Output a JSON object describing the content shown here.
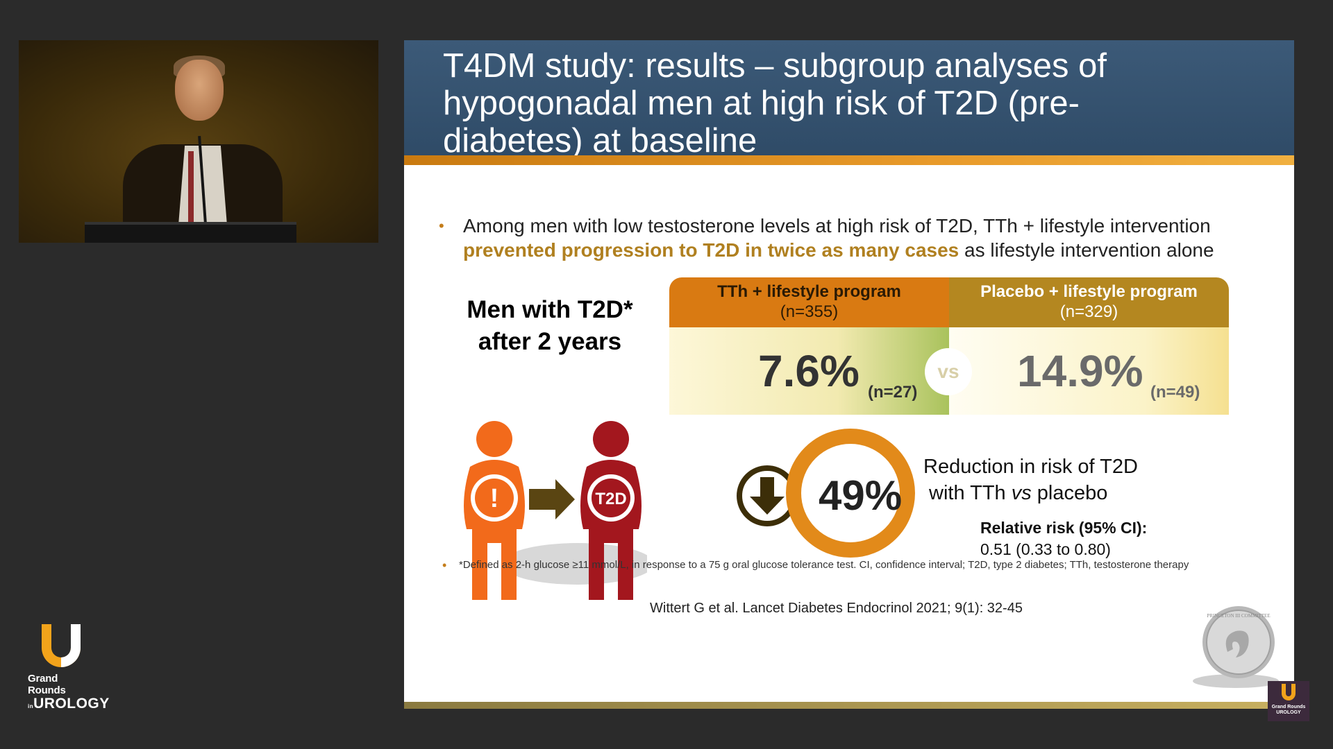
{
  "brand": {
    "name_line1": "Grand Rounds",
    "name_prefix": "in",
    "name_line2": "UROLOGY",
    "mini_line1": "Grand Rounds",
    "mini_line2": "UROLOGY"
  },
  "slide": {
    "title": "T4DM study: results – subgroup analyses of hypogonadal men at high risk of T2D (pre-diabetes) at baseline",
    "bullet": {
      "before": "Among men with low testosterone levels at high risk of T2D, TTh + lifestyle intervention ",
      "highlight": "prevented progression to T2D in twice as many cases",
      "after": " as lifestyle intervention alone"
    },
    "men_title_line1": "Men with T2D*",
    "men_title_line2": "after 2 years",
    "figures": {
      "left_symbol": "!",
      "right_label": "T2D"
    },
    "comparison": {
      "left": {
        "header": "TTh + lifestyle program",
        "n": "(n=355)",
        "value": "7.6%",
        "count": "(n=27)"
      },
      "vs": "vs",
      "right": {
        "header": "Placebo + lifestyle program",
        "n": "(n=329)",
        "value": "14.9%",
        "count": "(n=49)"
      }
    },
    "reduction": {
      "value": "49%",
      "line1": "Reduction in risk of T2D",
      "line2_a": "with TTh ",
      "line2_em": "vs",
      "line2_b": " placebo",
      "rr_label": "Relative risk (95% CI):",
      "rr_value": "0.51 (0.33 to 0.80)"
    },
    "footnote": "*Defined as 2-h glucose ≥11 mmol/L, in response to a 75 g oral glucose tolerance test. CI, confidence interval; T2D, type 2 diabetes; TTh, testosterone therapy",
    "citation": "Wittert G et al. Lancet Diabetes Endocrinol 2021; 9(1): 32-45",
    "medal_text": "PRINCETON III COMMITTEE"
  },
  "colors": {
    "header_blue": "#2e4a66",
    "accent_orange": "#d97a12",
    "accent_gold": "#b48720",
    "figure_orange": "#f26a1b",
    "figure_red": "#a3171e"
  }
}
